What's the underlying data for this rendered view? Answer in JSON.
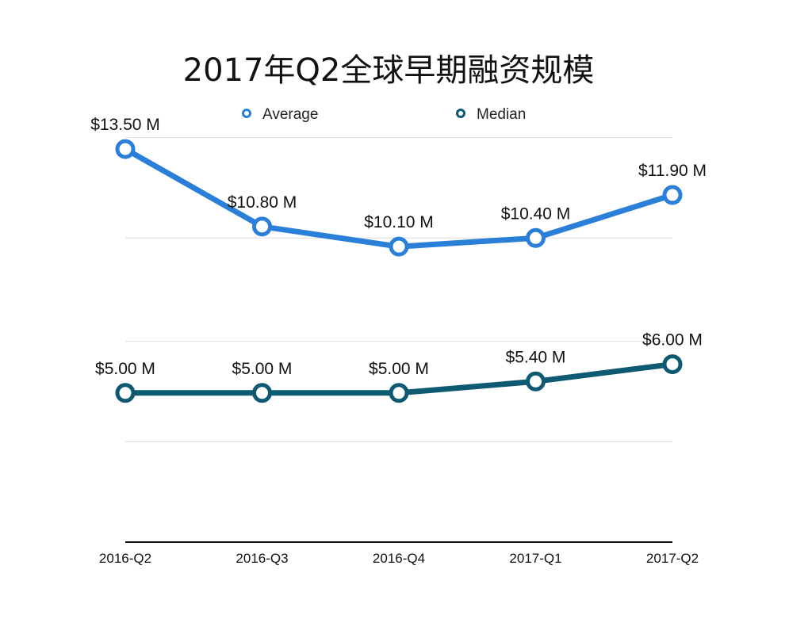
{
  "chart_data": {
    "type": "line",
    "title": "2017年Q2全球早期融资规模",
    "xlabel": "",
    "ylabel": "",
    "categories": [
      "2016-Q2",
      "2016-Q3",
      "2016-Q4",
      "2017-Q1",
      "2017-Q2"
    ],
    "series": [
      {
        "name": "Average",
        "values": [
          13.5,
          10.8,
          10.1,
          10.4,
          11.9
        ],
        "labels": [
          "$13.50 M",
          "$10.80 M",
          "$10.10 M",
          "$10.40 M",
          "$11.90 M"
        ],
        "color": "#2a7fd9"
      },
      {
        "name": "Median",
        "values": [
          5.0,
          5.0,
          5.0,
          5.4,
          6.0
        ],
        "labels": [
          "$5.00 M",
          "$5.00 M",
          "$5.00 M",
          "$5.40 M",
          "$6.00 M"
        ],
        "color": "#0f5a73"
      }
    ],
    "ylim": [
      -0.2,
      14.0
    ],
    "gridlines": [
      3.3,
      6.8,
      10.4,
      13.9
    ],
    "grid": true,
    "legend": "top-center"
  }
}
